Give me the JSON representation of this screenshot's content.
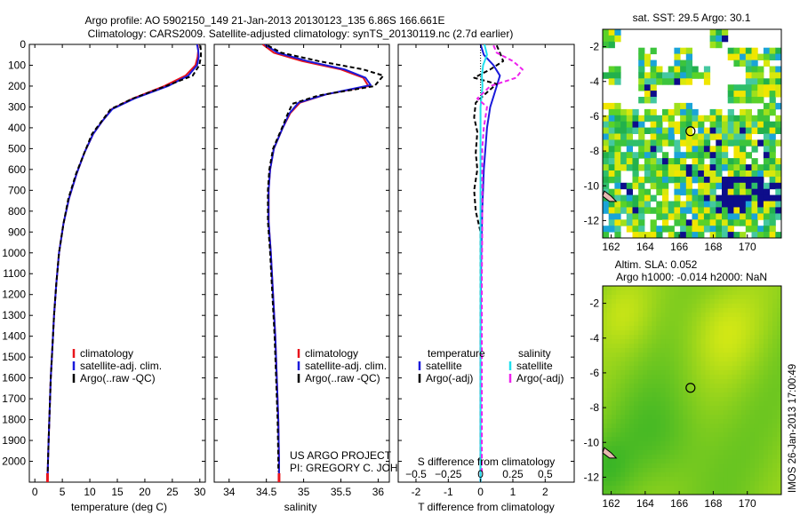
{
  "header": {
    "line1": "Argo profile: AO 5902150_149 21-Jan-2013 20130123_135 6.86S 166.661E",
    "line2": "Climatology: CARS2009. Satellite-adjusted climatology: synTS_20130119.nc (2.7d earlier)"
  },
  "colors": {
    "red": "#e8141b",
    "blue": "#1a1adb",
    "black": "#000000",
    "cyan": "#20e0ee",
    "magenta": "#ee22ee"
  },
  "chart_data": [
    {
      "type": "line",
      "title": "",
      "xlabel": "temperature (deg C)",
      "ylabel": "",
      "xlim": [
        -1,
        31
      ],
      "ylim": [
        2100,
        0
      ],
      "xticks": [
        0,
        5,
        10,
        15,
        20,
        25,
        30
      ],
      "yticks": [
        0,
        100,
        200,
        300,
        400,
        500,
        600,
        700,
        800,
        900,
        1000,
        1100,
        1200,
        1300,
        1400,
        1500,
        1600,
        1700,
        1800,
        1900,
        2000
      ],
      "legend": [
        "climatology",
        "satellite-adj. clim.",
        "Argo(..raw -QC)"
      ],
      "series": [
        {
          "name": "climatology",
          "color": "red",
          "dash": "",
          "points": [
            [
              29.6,
              0
            ],
            [
              29.7,
              30
            ],
            [
              29.6,
              60
            ],
            [
              29.2,
              100
            ],
            [
              27.4,
              150
            ],
            [
              23.5,
              200
            ],
            [
              17.8,
              260
            ],
            [
              14,
              310
            ],
            [
              12.2,
              370
            ],
            [
              10.6,
              430
            ],
            [
              9,
              520
            ],
            [
              7.6,
              620
            ],
            [
              6.2,
              740
            ],
            [
              5.2,
              860
            ],
            [
              4.4,
              1000
            ],
            [
              3.9,
              1150
            ],
            [
              3.5,
              1300
            ],
            [
              3.2,
              1450
            ],
            [
              2.9,
              1600
            ],
            [
              2.7,
              1750
            ],
            [
              2.5,
              1900
            ],
            [
              2.4,
              2000
            ],
            [
              2.3,
              2100
            ]
          ]
        },
        {
          "name": "satellite-adj. clim.",
          "color": "blue",
          "dash": "",
          "points": [
            [
              29.5,
              0
            ],
            [
              29.7,
              30
            ],
            [
              29.8,
              60
            ],
            [
              29.5,
              100
            ],
            [
              27.9,
              150
            ],
            [
              24.2,
              200
            ],
            [
              18.1,
              260
            ],
            [
              14.1,
              310
            ],
            [
              12.2,
              370
            ],
            [
              10.6,
              430
            ],
            [
              9,
              520
            ],
            [
              7.6,
              620
            ],
            [
              6.2,
              740
            ],
            [
              5.2,
              860
            ],
            [
              4.4,
              1000
            ],
            [
              3.9,
              1150
            ],
            [
              3.5,
              1300
            ],
            [
              3.2,
              1450
            ],
            [
              2.9,
              1600
            ],
            [
              2.7,
              1750
            ],
            [
              2.5,
              1900
            ],
            [
              2.4,
              2000
            ],
            [
              2.3,
              2100
            ]
          ]
        },
        {
          "name": "Argo(..raw -QC)",
          "color": "black",
          "dash": "5 3",
          "points": [
            [
              30.1,
              5
            ],
            [
              30.2,
              30
            ],
            [
              30.2,
              60
            ],
            [
              29.9,
              100
            ],
            [
              28.7,
              150
            ],
            [
              23.8,
              200
            ],
            [
              17.8,
              260
            ],
            [
              13.8,
              310
            ],
            [
              12.1,
              370
            ],
            [
              10.4,
              430
            ],
            [
              9,
              520
            ],
            [
              7.5,
              620
            ],
            [
              6.1,
              740
            ],
            [
              5.2,
              860
            ],
            [
              4.4,
              1000
            ],
            [
              3.9,
              1150
            ],
            [
              3.5,
              1300
            ],
            [
              3.2,
              1450
            ],
            [
              2.9,
              1600
            ],
            [
              2.7,
              1750
            ],
            [
              2.5,
              1900
            ],
            [
              2.4,
              2000
            ],
            [
              2.35,
              2050
            ]
          ]
        }
      ]
    },
    {
      "type": "line",
      "title": "",
      "xlabel": "salinity",
      "ylabel": "",
      "xlim": [
        33.8,
        36.15
      ],
      "ylim": [
        2100,
        0
      ],
      "xticks": [
        34,
        34.5,
        35,
        35.5,
        36
      ],
      "yticks": [],
      "legend": [
        "climatology",
        "satellite-adj. clim.",
        "Argo(..raw -QC)"
      ],
      "footer": [
        "US ARGO PROJECT",
        "PI: GREGORY C. JOHNSON"
      ],
      "series": [
        {
          "name": "climatology",
          "color": "red",
          "dash": "",
          "points": [
            [
              34.45,
              0
            ],
            [
              34.6,
              40
            ],
            [
              34.98,
              80
            ],
            [
              35.5,
              120
            ],
            [
              35.8,
              160
            ],
            [
              35.87,
              200
            ],
            [
              35.3,
              240
            ],
            [
              34.95,
              280
            ],
            [
              34.82,
              330
            ],
            [
              34.72,
              400
            ],
            [
              34.6,
              500
            ],
            [
              34.55,
              600
            ],
            [
              34.53,
              700
            ],
            [
              34.53,
              850
            ],
            [
              34.56,
              1000
            ],
            [
              34.59,
              1200
            ],
            [
              34.62,
              1400
            ],
            [
              34.64,
              1600
            ],
            [
              34.66,
              1800
            ],
            [
              34.67,
              2000
            ],
            [
              34.67,
              2100
            ]
          ]
        },
        {
          "name": "satellite-adj. clim.",
          "color": "blue",
          "dash": "",
          "points": [
            [
              34.48,
              0
            ],
            [
              34.65,
              40
            ],
            [
              35.05,
              80
            ],
            [
              35.55,
              120
            ],
            [
              35.83,
              160
            ],
            [
              35.9,
              195
            ],
            [
              35.3,
              240
            ],
            [
              34.93,
              280
            ],
            [
              34.81,
              330
            ],
            [
              34.72,
              400
            ],
            [
              34.6,
              500
            ],
            [
              34.55,
              600
            ],
            [
              34.53,
              700
            ],
            [
              34.53,
              850
            ],
            [
              34.56,
              1000
            ],
            [
              34.59,
              1200
            ],
            [
              34.62,
              1400
            ],
            [
              34.64,
              1600
            ],
            [
              34.66,
              1800
            ],
            [
              34.67,
              2000
            ],
            [
              34.67,
              2100
            ]
          ]
        },
        {
          "name": "Argo(..raw -QC)",
          "color": "black",
          "dash": "5 3",
          "points": [
            [
              34.52,
              5
            ],
            [
              34.7,
              40
            ],
            [
              35.2,
              80
            ],
            [
              35.8,
              120
            ],
            [
              36.07,
              150
            ],
            [
              35.95,
              200
            ],
            [
              35.2,
              245
            ],
            [
              34.85,
              285
            ],
            [
              34.79,
              330
            ],
            [
              34.71,
              400
            ],
            [
              34.59,
              500
            ],
            [
              34.54,
              600
            ],
            [
              34.52,
              700
            ],
            [
              34.52,
              850
            ],
            [
              34.55,
              1000
            ],
            [
              34.58,
              1200
            ],
            [
              34.61,
              1400
            ],
            [
              34.63,
              1600
            ],
            [
              34.65,
              1800
            ],
            [
              34.66,
              2000
            ],
            [
              34.66,
              2050
            ]
          ]
        }
      ]
    },
    {
      "type": "line",
      "title": "",
      "xlabel": "T difference from climatology",
      "xlabel2": "S difference from climatology",
      "ylabel": "",
      "xlim": [
        -2.55,
        2.9
      ],
      "ylim": [
        2100,
        0
      ],
      "xticks": [
        -2,
        -1,
        0,
        1,
        2
      ],
      "xticks_s": [
        -0.5,
        -0.25,
        0,
        0.25,
        0.5
      ],
      "s_scale": 4,
      "yticks": [],
      "legend_temperature": {
        "title": "temperature",
        "items": [
          "satellite",
          "Argo(-adj)"
        ]
      },
      "legend_salinity": {
        "title": "salinity",
        "items": [
          "satellite",
          "Argo(-adj)"
        ]
      },
      "series": [
        {
          "name": "T satellite",
          "color": "blue",
          "dash": "",
          "points": [
            [
              0,
              0
            ],
            [
              0.1,
              50
            ],
            [
              0.4,
              100
            ],
            [
              0.6,
              150
            ],
            [
              0.5,
              200
            ],
            [
              0.4,
              250
            ],
            [
              0.3,
              300
            ],
            [
              0.2,
              400
            ],
            [
              0.1,
              600
            ],
            [
              0.05,
              800
            ],
            [
              0.02,
              1000
            ],
            [
              0,
              1400
            ],
            [
              0,
              2100
            ]
          ]
        },
        {
          "name": "T Argo(-adj)",
          "color": "black",
          "dash": "5 3",
          "points": [
            [
              0.5,
              5
            ],
            [
              0.6,
              40
            ],
            [
              0.7,
              80
            ],
            [
              0.3,
              120
            ],
            [
              -0.2,
              160
            ],
            [
              0.5,
              190
            ],
            [
              0.2,
              230
            ],
            [
              -0.15,
              280
            ],
            [
              -0.2,
              350
            ],
            [
              -0.1,
              420
            ],
            [
              -0.15,
              520
            ],
            [
              -0.1,
              600
            ],
            [
              -0.2,
              700
            ],
            [
              -0.15,
              800
            ],
            [
              0,
              900
            ],
            [
              0,
              1000
            ],
            [
              0,
              1600
            ],
            [
              0,
              2050
            ]
          ]
        },
        {
          "name": "S satellite",
          "color": "cyan",
          "dash": "",
          "points": [
            [
              0.12,
              0
            ],
            [
              0.2,
              50
            ],
            [
              0.08,
              100
            ],
            [
              0.04,
              150
            ],
            [
              0.06,
              200
            ],
            [
              0,
              300
            ],
            [
              0,
              500
            ],
            [
              0,
              800
            ],
            [
              0,
              1200
            ],
            [
              0,
              1600
            ],
            [
              0,
              2000
            ],
            [
              0,
              2100
            ]
          ]
        },
        {
          "name": "S Argo(-adj)",
          "color": "magenta",
          "dash": "5 3",
          "points": [
            [
              0.4,
              5
            ],
            [
              0.5,
              40
            ],
            [
              1.0,
              80
            ],
            [
              1.3,
              120
            ],
            [
              1.1,
              160
            ],
            [
              0.3,
              200
            ],
            [
              -0.1,
              260
            ],
            [
              0.2,
              300
            ],
            [
              0.1,
              400
            ],
            [
              0.05,
              500
            ],
            [
              0.05,
              700
            ],
            [
              0.05,
              900
            ],
            [
              0.04,
              1100
            ],
            [
              0.04,
              1400
            ],
            [
              0.04,
              1800
            ],
            [
              0.04,
              2050
            ]
          ]
        }
      ]
    },
    {
      "type": "heatmap",
      "title": "sat. SST: 29.5 Argo: 30.1",
      "xlim": [
        161.5,
        172
      ],
      "ylim": [
        -13,
        -1
      ],
      "xticks": [
        162,
        164,
        166,
        168,
        170
      ],
      "yticks": [
        -2,
        -4,
        -6,
        -8,
        -10,
        -12
      ],
      "argo_position": [
        166.661,
        -6.86
      ]
    },
    {
      "type": "heatmap",
      "title": "Altim. SLA: 0.052",
      "subtitle": "Argo h1000: -0.014 h2000: NaN",
      "xlim": [
        161.5,
        172
      ],
      "ylim": [
        -13,
        -1
      ],
      "xticks": [
        162,
        164,
        166,
        168,
        170
      ],
      "yticks": [
        -2,
        -4,
        -6,
        -8,
        -10,
        -12
      ],
      "argo_position": [
        166.661,
        -6.86
      ]
    }
  ],
  "watermark": "IMOS 26-Jan-2013 17:00:49"
}
